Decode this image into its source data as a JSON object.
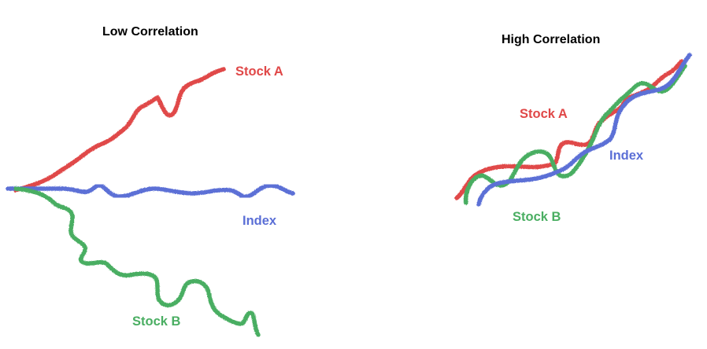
{
  "panels": [
    {
      "title": "Low Correlation",
      "series": [
        {
          "name": "Stock A",
          "color": "#e04848"
        },
        {
          "name": "Index",
          "color": "#5b6fd6"
        },
        {
          "name": "Stock B",
          "color": "#4aae62"
        }
      ]
    },
    {
      "title": "High Correlation",
      "series": [
        {
          "name": "Stock A",
          "color": "#e04848"
        },
        {
          "name": "Index",
          "color": "#5b6fd6"
        },
        {
          "name": "Stock B",
          "color": "#4aae62"
        }
      ]
    }
  ]
}
